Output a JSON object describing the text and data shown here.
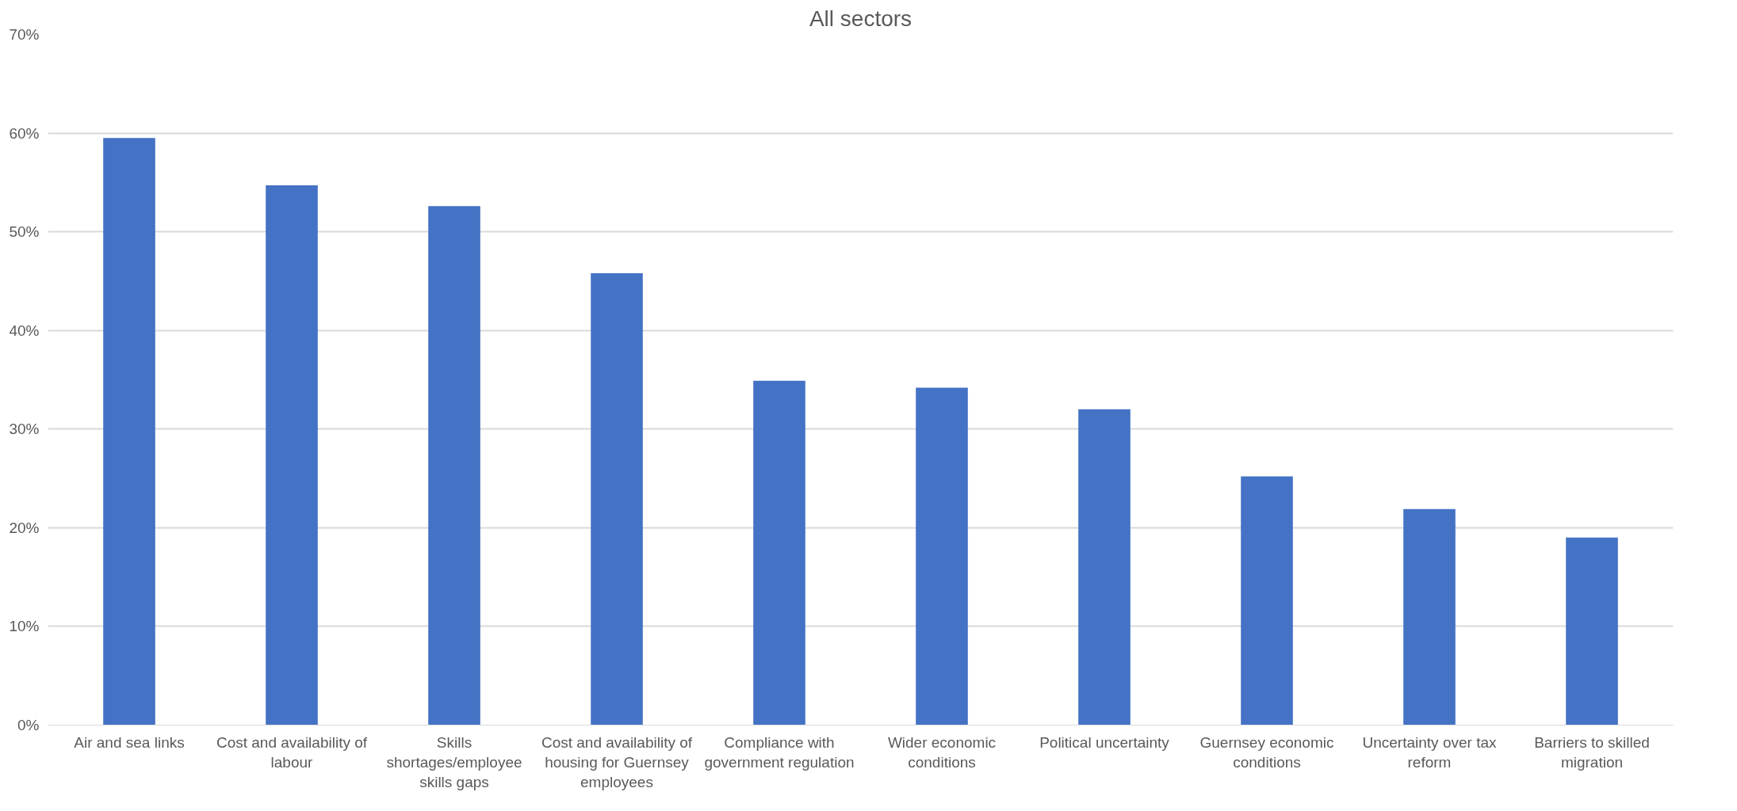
{
  "chart_data": {
    "type": "bar",
    "title": "All sectors",
    "categories": [
      "Air and sea links",
      "Cost and availability of labour",
      "Skills shortages/employee skills gaps",
      "Cost and availability of housing for Guernsey employees",
      "Compliance with government regulation",
      "Wider economic conditions",
      "Political uncertainty",
      "Guernsey economic conditions",
      "Uncertainty over tax reform",
      "Barriers to skilled migration"
    ],
    "values": [
      0.595,
      0.547,
      0.526,
      0.458,
      0.349,
      0.342,
      0.32,
      0.252,
      0.219,
      0.19
    ],
    "color": "#4472c4",
    "ylim": [
      0,
      0.7
    ],
    "yticks": [
      {
        "value": 0,
        "label": "0%"
      },
      {
        "value": 0.1,
        "label": "10%"
      },
      {
        "value": 0.2,
        "label": "20%"
      },
      {
        "value": 0.3,
        "label": "30%"
      },
      {
        "value": 0.4,
        "label": "40%"
      },
      {
        "value": 0.5,
        "label": "50%"
      },
      {
        "value": 0.6,
        "label": "60%"
      },
      {
        "value": 0.7,
        "label": "70%"
      }
    ],
    "grid": "y"
  }
}
